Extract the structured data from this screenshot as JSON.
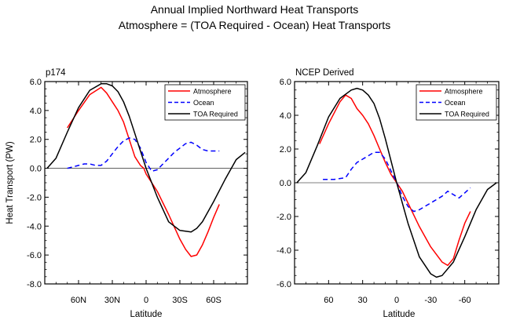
{
  "figure": {
    "title_line1": "Annual Implied Northward Heat Transports",
    "title_line2": "Atmosphere = (TOA Required - Ocean) Heat Transports"
  },
  "chart_data": [
    {
      "type": "line",
      "panel_title": "p174",
      "xlabel": "Latitude",
      "ylabel": "Heat Transport (PW)",
      "xlim": [
        90,
        -90
      ],
      "ylim": [
        -8,
        6
      ],
      "yticks": [
        6,
        4,
        2,
        0,
        -2,
        -4,
        -6,
        -8
      ],
      "ytick_labels": [
        "6.0",
        "4.0",
        "2.0",
        "0.0",
        "-2.0",
        "-4.0",
        "-6.0",
        "-8.0"
      ],
      "xticks": [
        60,
        30,
        0,
        -30,
        -60
      ],
      "xtick_labels": [
        "60N",
        "30N",
        "0",
        "30S",
        "60S"
      ],
      "grid": false,
      "zero_line": true,
      "legend_position": "top-right",
      "series": [
        {
          "name": "Atmosphere",
          "color": "#ff0000",
          "style": "solid",
          "x": [
            70,
            60,
            50,
            40,
            35,
            30,
            25,
            20,
            15,
            10,
            5,
            2,
            0,
            -5,
            -10,
            -20,
            -30,
            -35,
            -40,
            -45,
            -50,
            -55,
            -60,
            -65
          ],
          "y": [
            2.8,
            4.0,
            5.1,
            5.6,
            5.2,
            4.6,
            4.0,
            3.2,
            2.0,
            0.8,
            0.2,
            0.0,
            -0.4,
            -1.0,
            -1.6,
            -3.2,
            -4.9,
            -5.6,
            -6.1,
            -6.0,
            -5.3,
            -4.4,
            -3.4,
            -2.5
          ]
        },
        {
          "name": "Ocean",
          "color": "#0000ff",
          "style": "dashed",
          "x": [
            70,
            60,
            55,
            50,
            45,
            40,
            35,
            30,
            25,
            20,
            15,
            10,
            5,
            0,
            -5,
            -10,
            -15,
            -20,
            -25,
            -30,
            -35,
            -40,
            -45,
            -50,
            -55,
            -60,
            -65
          ],
          "y": [
            0.0,
            0.2,
            0.3,
            0.3,
            0.2,
            0.2,
            0.5,
            1.0,
            1.5,
            1.9,
            2.1,
            2.0,
            1.4,
            0.4,
            -0.2,
            -0.1,
            0.3,
            0.7,
            1.1,
            1.4,
            1.7,
            1.8,
            1.6,
            1.3,
            1.2,
            1.2,
            1.2
          ]
        },
        {
          "name": "TOA Required",
          "color": "#000000",
          "style": "solid",
          "x": [
            88,
            80,
            70,
            60,
            50,
            40,
            35,
            30,
            25,
            20,
            15,
            10,
            5,
            0,
            -10,
            -20,
            -30,
            -40,
            -45,
            -50,
            -60,
            -70,
            -80,
            -88
          ],
          "y": [
            0.0,
            0.7,
            2.5,
            4.2,
            5.4,
            5.85,
            5.85,
            5.7,
            5.3,
            4.6,
            3.6,
            2.4,
            1.2,
            0.0,
            -2.0,
            -3.7,
            -4.3,
            -4.4,
            -4.15,
            -3.7,
            -2.3,
            -0.8,
            0.6,
            1.1
          ]
        }
      ]
    },
    {
      "type": "line",
      "panel_title": "NCEP Derived",
      "xlabel": "Latitude",
      "ylabel": "",
      "xlim": [
        90,
        -90
      ],
      "ylim": [
        -6,
        6
      ],
      "yticks": [
        6,
        4,
        2,
        0,
        -2,
        -4,
        -6
      ],
      "ytick_labels": [
        "6.0",
        "4.0",
        "2.0",
        "0.0",
        "-2.0",
        "-4.0",
        "-6.0"
      ],
      "xticks": [
        60,
        30,
        0,
        -30,
        -60
      ],
      "xtick_labels": [
        "60",
        "30",
        "0",
        "-30",
        "-60"
      ],
      "grid": false,
      "zero_line": true,
      "legend_position": "top-right",
      "series": [
        {
          "name": "Atmosphere",
          "color": "#ff0000",
          "style": "solid",
          "x": [
            68,
            60,
            50,
            45,
            40,
            35,
            30,
            25,
            20,
            15,
            10,
            5,
            0,
            -5,
            -10,
            -20,
            -30,
            -40,
            -45,
            -50,
            -55,
            -60,
            -65
          ],
          "y": [
            2.3,
            3.5,
            4.8,
            5.2,
            5.0,
            4.4,
            4.0,
            3.5,
            2.8,
            2.0,
            1.2,
            0.5,
            0.0,
            -0.5,
            -1.2,
            -2.6,
            -3.8,
            -4.7,
            -4.9,
            -4.5,
            -3.4,
            -2.4,
            -1.7
          ]
        },
        {
          "name": "Ocean",
          "color": "#0000ff",
          "style": "dashed",
          "x": [
            65,
            55,
            45,
            40,
            35,
            30,
            25,
            20,
            15,
            10,
            5,
            0,
            -5,
            -10,
            -15,
            -20,
            -25,
            -30,
            -35,
            -40,
            -45,
            -50,
            -55,
            -60,
            -65
          ],
          "y": [
            0.2,
            0.2,
            0.3,
            0.8,
            1.2,
            1.4,
            1.6,
            1.8,
            1.8,
            1.4,
            0.7,
            0.0,
            -0.8,
            -1.4,
            -1.7,
            -1.6,
            -1.4,
            -1.2,
            -1.0,
            -0.8,
            -0.5,
            -0.7,
            -0.9,
            -0.6,
            -0.3
          ]
        },
        {
          "name": "TOA Required",
          "color": "#000000",
          "style": "solid",
          "x": [
            88,
            80,
            70,
            60,
            50,
            40,
            35,
            30,
            25,
            20,
            15,
            10,
            5,
            0,
            -10,
            -20,
            -30,
            -35,
            -40,
            -50,
            -60,
            -70,
            -80,
            -88
          ],
          "y": [
            0.0,
            0.6,
            2.2,
            3.9,
            5.0,
            5.5,
            5.6,
            5.5,
            5.2,
            4.7,
            3.8,
            2.6,
            1.3,
            0.0,
            -2.4,
            -4.4,
            -5.4,
            -5.6,
            -5.5,
            -4.7,
            -3.2,
            -1.6,
            -0.4,
            0.0
          ]
        }
      ]
    }
  ]
}
